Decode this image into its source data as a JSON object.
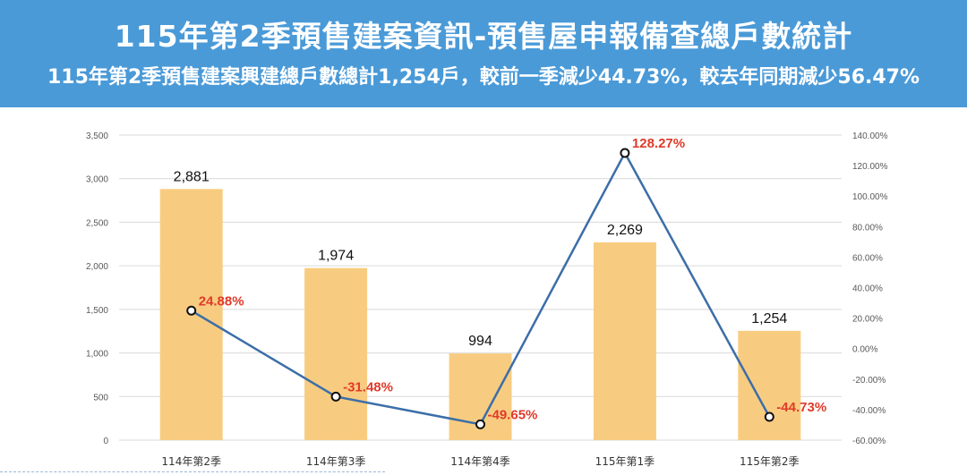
{
  "header": {
    "title": "115年第2季預售建案資訊-預售屋申報備查總戶數統計",
    "subtitle": "115年第2季預售建案興建總戶數總計1,254戶，較前一季減少44.73%，較去年同期減少56.47%"
  },
  "colors": {
    "banner": "#4a9ad8",
    "bar": "#f8cc80",
    "line": "#3c6ea8",
    "pct_label": "#e03a2a"
  },
  "chart_data": {
    "type": "bar",
    "categories": [
      "114年第2季",
      "114年第3季",
      "114年第4季",
      "115年第1季",
      "115年第2季"
    ],
    "series": [
      {
        "type": "bar",
        "axis": "left",
        "values": [
          2881,
          1974,
          994,
          2269,
          1254
        ],
        "value_labels": [
          "2,881",
          "1,974",
          "994",
          "2,269",
          "1,254"
        ]
      },
      {
        "type": "line",
        "axis": "right",
        "values": [
          24.88,
          -31.48,
          -49.65,
          128.27,
          -44.73
        ],
        "value_labels": [
          "24.88%",
          "-31.48%",
          "-49.65%",
          "128.27%",
          "-44.73%"
        ]
      }
    ],
    "y_left": {
      "range": [
        0,
        3500
      ],
      "ticks": [
        "0",
        "500",
        "1,000",
        "1,500",
        "2,000",
        "2,500",
        "3,000",
        "3,500"
      ]
    },
    "y_right": {
      "range": [
        -60,
        140
      ],
      "ticks": [
        "-60.00%",
        "-40.00%",
        "-20.00%",
        "0.00%",
        "20.00%",
        "40.00%",
        "60.00%",
        "80.00%",
        "100.00%",
        "120.00%",
        "140.00%"
      ]
    },
    "grid": true
  }
}
